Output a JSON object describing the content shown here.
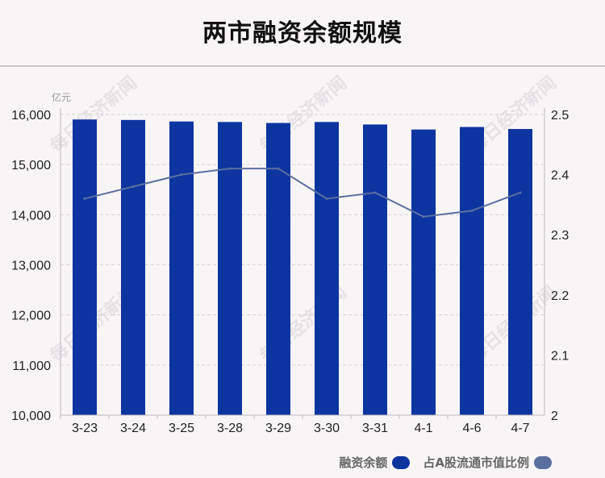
{
  "title": "两市融资余额规模",
  "unit": "亿元",
  "watermark": "每日经济新闻",
  "legend": [
    {
      "label": "融资余额",
      "color": "#0d35a0"
    },
    {
      "label": "占A股流通市值比例",
      "color": "#5a6fa0"
    }
  ],
  "chart_data": {
    "type": "bar",
    "categories": [
      "3-23",
      "3-24",
      "3-25",
      "3-28",
      "3-29",
      "3-30",
      "3-31",
      "4-1",
      "4-6",
      "4-7"
    ],
    "series": [
      {
        "name": "融资余额",
        "type": "bar",
        "axis": "left",
        "color": "#0d35a0",
        "values": [
          15900,
          15890,
          15860,
          15850,
          15830,
          15850,
          15800,
          15700,
          15750,
          15710
        ]
      },
      {
        "name": "占A股流通市值比例",
        "type": "line",
        "axis": "right",
        "color": "#5a6fa0",
        "values": [
          2.36,
          2.38,
          2.4,
          2.41,
          2.41,
          2.36,
          2.37,
          2.33,
          2.34,
          2.37
        ]
      }
    ],
    "y_left": {
      "min": 10000,
      "max": 16000,
      "ticks": [
        "10,000",
        "11,000",
        "12,000",
        "13,000",
        "14,000",
        "15,000",
        "16,000"
      ],
      "tick_values": [
        10000,
        11000,
        12000,
        13000,
        14000,
        15000,
        16000
      ]
    },
    "y_right": {
      "min": 2,
      "max": 2.5,
      "ticks": [
        "2",
        "2.1",
        "2.2",
        "2.3",
        "2.4",
        "2.5"
      ],
      "tick_values": [
        2,
        2.1,
        2.2,
        2.3,
        2.4,
        2.5
      ]
    },
    "grid": true,
    "legend_position": "bottom-right"
  }
}
